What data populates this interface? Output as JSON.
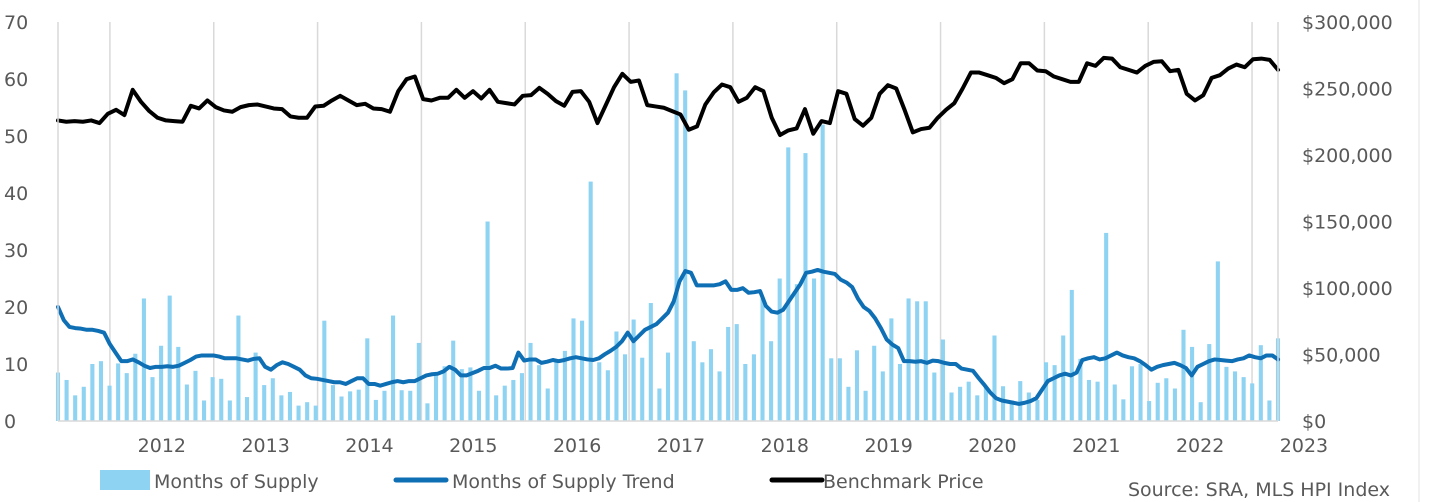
{
  "chart_data": {
    "type": "bar",
    "x_start": "2011-07",
    "x_end": "2023-04",
    "x_tick_labels": [
      "2012",
      "2013",
      "2014",
      "2015",
      "2016",
      "2017",
      "2018",
      "2019",
      "2020",
      "2021",
      "2022",
      "2023"
    ],
    "y_left": {
      "range": [
        0,
        70
      ],
      "ticks": [
        0,
        10,
        20,
        30,
        40,
        50,
        60,
        70
      ],
      "tick_labels": [
        "0",
        "10",
        "20",
        "30",
        "40",
        "50",
        "60",
        "70"
      ]
    },
    "y_right": {
      "range": [
        0,
        300000
      ],
      "ticks": [
        0,
        50000,
        100000,
        150000,
        200000,
        250000,
        300000
      ],
      "tick_labels": [
        "$0",
        "$50,000",
        "$100,000",
        "$150,000",
        "$200,000",
        "$250,000",
        "$300,000"
      ]
    },
    "grid": "vertical-at-years",
    "legend_position": "bottom",
    "source": "Source: SRA, MLS HPI Index",
    "series": [
      {
        "name": "Months of Supply",
        "kind": "bar",
        "axis": "left",
        "color": "#8fd3f2",
        "values": [
          8.5,
          7.2,
          4.5,
          6.0,
          10.0,
          10.5,
          6.2,
          10.1,
          8.4,
          11.8,
          21.5,
          7.7,
          13.2,
          22.0,
          13.0,
          6.4,
          8.8,
          3.6,
          7.7,
          7.4,
          3.6,
          18.5,
          4.2,
          12.0,
          6.3,
          7.5,
          4.5,
          5.1,
          2.7,
          3.3,
          2.7,
          17.6,
          6.3,
          4.3,
          5.2,
          5.5,
          14.5,
          3.7,
          5.3,
          18.5,
          5.4,
          5.3,
          13.7,
          3.1,
          8.4,
          9.6,
          14.1,
          9.1,
          9.4,
          5.3,
          35.0,
          4.5,
          6.2,
          7.2,
          8.4,
          13.7,
          9.8,
          5.7,
          10.5,
          12.3,
          18.0,
          17.6,
          42.0,
          10.3,
          8.9,
          15.7,
          11.7,
          17.8,
          11.1,
          20.7,
          5.7,
          12.0,
          61.0,
          58.0,
          14.0,
          10.3,
          12.6,
          8.7,
          16.5,
          17.0,
          10.0,
          11.7,
          21.5,
          14.0,
          25.0,
          48.0,
          24.0,
          47.0,
          25.0,
          52.0,
          11.0,
          11.0,
          6.0,
          12.4,
          5.3,
          13.2,
          8.7,
          18.0,
          10.0,
          21.5,
          21.0,
          21.0,
          8.5,
          14.3,
          5.0,
          6.0,
          6.9,
          4.5,
          6.0,
          15.0,
          6.1,
          3.6,
          7.0,
          5.0,
          3.7,
          10.3,
          9.8,
          15.0,
          23.0,
          10.9,
          7.2,
          6.9,
          33.0,
          6.4,
          3.8,
          9.6,
          10.0,
          3.5,
          6.7,
          7.5,
          5.7,
          16.0,
          13.0,
          3.3,
          13.5,
          28.0,
          9.5,
          8.7,
          7.7,
          6.6,
          13.3,
          3.6,
          14.5
        ]
      },
      {
        "name": "Months of Supply Trend",
        "kind": "line",
        "axis": "left",
        "color": "#0e6fb5",
        "values": [
          20.0,
          17.7,
          16.5,
          16.3,
          16.2,
          16.0,
          16.0,
          15.8,
          15.5,
          13.5,
          12.0,
          10.5,
          10.5,
          10.8,
          10.3,
          9.7,
          9.3,
          9.5,
          9.5,
          9.6,
          9.5,
          9.7,
          10.2,
          10.7,
          11.3,
          11.5,
          11.5,
          11.5,
          11.3,
          11.0,
          11.0,
          11.0,
          10.8,
          10.6,
          10.9,
          11.0,
          9.5,
          9.0,
          9.8,
          10.3,
          10.0,
          9.5,
          9.0,
          8.0,
          7.5,
          7.4,
          7.2,
          7.0,
          6.8,
          6.8,
          6.5,
          7.0,
          7.5,
          7.5,
          6.5,
          6.5,
          6.2,
          6.5,
          6.8,
          7.0,
          6.8,
          7.0,
          7.0,
          7.5,
          8.0,
          8.2,
          8.3,
          8.7,
          9.5,
          9.0,
          8.0,
          8.0,
          8.4,
          8.8,
          9.3,
          9.3,
          9.7,
          9.2,
          9.2,
          9.3,
          12.0,
          10.6,
          10.8,
          10.8,
          10.2,
          10.4,
          10.7,
          10.5,
          10.7,
          11.0,
          11.2,
          11.0,
          10.8,
          10.7,
          11.0,
          11.7,
          12.3,
          13.0,
          14.0,
          15.5,
          14.0,
          15.0,
          16.0,
          16.5,
          17.0,
          18.0,
          19.0,
          21.0,
          24.5,
          26.3,
          26.0,
          23.8,
          23.8,
          23.8,
          23.8,
          24.0,
          24.5,
          23.0,
          23.0,
          23.3,
          22.5,
          22.6,
          22.8,
          20.2,
          19.2,
          19.0,
          19.5,
          21.0,
          22.5,
          24.0,
          26.0,
          26.2,
          26.5,
          26.2,
          26.0,
          25.8,
          24.8,
          24.3,
          23.5,
          21.5,
          20.0,
          19.3,
          18.0,
          16.3,
          14.3,
          13.4,
          12.8,
          10.5,
          10.5,
          10.4,
          10.5,
          10.2,
          10.6,
          10.5,
          10.2,
          10.0,
          10.0,
          9.2,
          9.0,
          8.8,
          7.5,
          6.3,
          5.0,
          4.0,
          3.6,
          3.4,
          3.2,
          3.0,
          3.2,
          3.5,
          4.0,
          5.5,
          7.0,
          7.5,
          8.0,
          8.3,
          8.0,
          8.5,
          10.7,
          11.0,
          11.2,
          10.8,
          11.0,
          11.5,
          12.0,
          11.5,
          11.2,
          11.0,
          10.5,
          9.8,
          9.0,
          9.5,
          9.8,
          10.0,
          10.2,
          9.8,
          9.3,
          8.0,
          9.5,
          10.0,
          10.5,
          10.8,
          10.7,
          10.6,
          10.5,
          10.8,
          11.0,
          11.5,
          11.2,
          11.0,
          11.5,
          11.5,
          10.8
        ]
      },
      {
        "name": "Benchmark Price",
        "kind": "line",
        "axis": "right",
        "color": "#000000",
        "values": [
          226000,
          225000,
          225500,
          225000,
          226000,
          224000,
          231000,
          234000,
          230000,
          249000,
          240000,
          233000,
          228000,
          226000,
          225500,
          225000,
          237000,
          235000,
          241000,
          236000,
          233500,
          232500,
          236000,
          237500,
          238000,
          236500,
          235000,
          234500,
          229000,
          228000,
          228000,
          236500,
          237000,
          241000,
          244500,
          241000,
          237500,
          238500,
          235000,
          234500,
          232500,
          248000,
          257000,
          259000,
          242000,
          241000,
          243000,
          243000,
          249000,
          243000,
          248000,
          242500,
          249000,
          240000,
          239000,
          238000,
          244500,
          245000,
          250500,
          246000,
          240500,
          237000,
          247500,
          248000,
          240000,
          224000,
          237500,
          251000,
          261000,
          255000,
          256000,
          237500,
          236500,
          235500,
          233000,
          230500,
          219000,
          221500,
          238000,
          247000,
          253000,
          251000,
          240000,
          243000,
          251000,
          248000,
          228000,
          215000,
          218500,
          220000,
          234500,
          216000,
          225500,
          224000,
          248000,
          246000,
          227000,
          222000,
          228000,
          246000,
          252500,
          250000,
          234000,
          217000,
          219500,
          220500,
          228000,
          234000,
          239000,
          250000,
          262000,
          262000,
          260000,
          258000,
          254000,
          257000,
          269000,
          269000,
          263500,
          263000,
          259000,
          257000,
          255000,
          255000,
          269000,
          267000,
          273000,
          272500,
          266000,
          264000,
          262000,
          267000,
          270000,
          270500,
          263000,
          264000,
          246000,
          241000,
          245000,
          258000,
          260000,
          265000,
          268000,
          266000,
          272000,
          272500,
          271500,
          264000
        ]
      }
    ]
  }
}
